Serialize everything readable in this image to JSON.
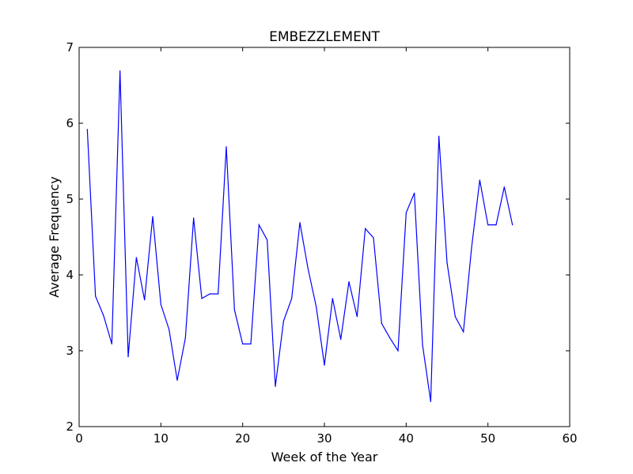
{
  "chart_data": {
    "type": "line",
    "title": "EMBEZZLEMENT",
    "xlabel": "Week of the Year",
    "ylabel": "Average Frequency",
    "xlim": [
      0,
      60
    ],
    "ylim": [
      2,
      7
    ],
    "xticks": [
      0,
      10,
      20,
      30,
      40,
      50,
      60
    ],
    "yticks": [
      2,
      3,
      4,
      5,
      6,
      7
    ],
    "grid": false,
    "series": [
      {
        "color": "#0000ff",
        "x": [
          1,
          2,
          3,
          4,
          5,
          6,
          7,
          8,
          9,
          10,
          11,
          12,
          13,
          14,
          15,
          16,
          17,
          18,
          19,
          20,
          21,
          22,
          23,
          24,
          25,
          26,
          27,
          28,
          29,
          30,
          31,
          32,
          33,
          34,
          35,
          36,
          37,
          38,
          39,
          40,
          41,
          42,
          43,
          44,
          45,
          46,
          47,
          48,
          49,
          50,
          51,
          52,
          53
        ],
        "values": [
          5.92,
          3.72,
          3.46,
          3.09,
          6.69,
          2.92,
          4.23,
          3.67,
          4.77,
          3.61,
          3.28,
          2.61,
          3.17,
          4.75,
          3.69,
          3.75,
          3.75,
          5.69,
          3.54,
          3.09,
          3.09,
          4.66,
          4.46,
          2.53,
          3.39,
          3.69,
          4.69,
          4.08,
          3.58,
          2.81,
          3.69,
          3.15,
          3.91,
          3.45,
          4.61,
          4.49,
          3.36,
          3.17,
          3.0,
          4.82,
          5.08,
          3.08,
          2.33,
          5.83,
          4.16,
          3.45,
          3.25,
          4.36,
          5.25,
          4.66,
          4.66,
          5.16,
          4.66
        ]
      }
    ]
  }
}
